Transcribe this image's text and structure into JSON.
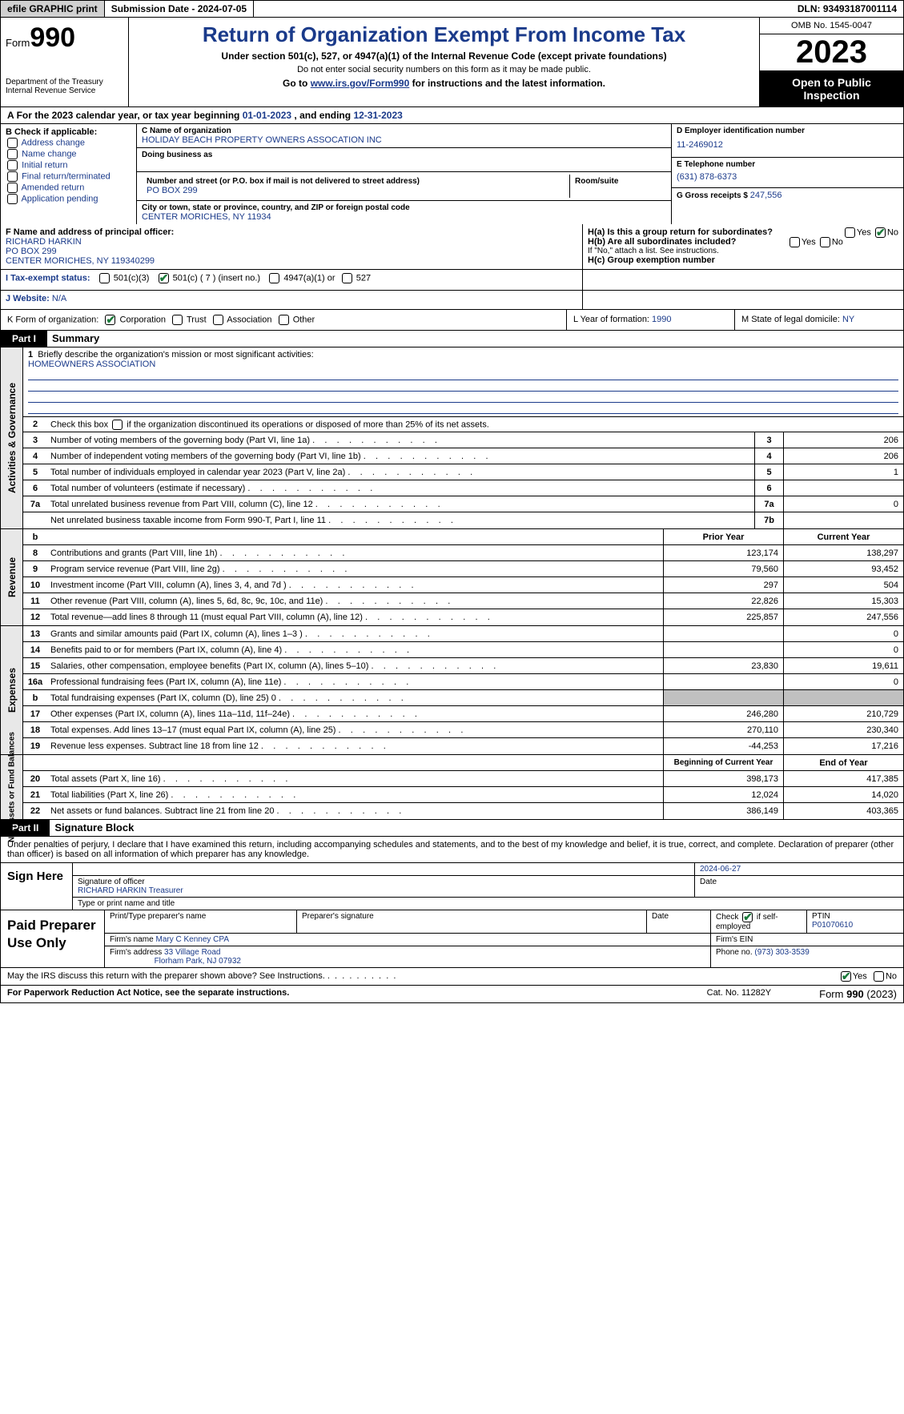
{
  "topbar": {
    "efile": "efile GRAPHIC print",
    "submission": "Submission Date - 2024-07-05",
    "dln": "DLN: 93493187001114"
  },
  "header": {
    "form_prefix": "Form",
    "form_number": "990",
    "dept1": "Department of the Treasury",
    "dept2": "Internal Revenue Service",
    "title": "Return of Organization Exempt From Income Tax",
    "subtitle": "Under section 501(c), 527, or 4947(a)(1) of the Internal Revenue Code (except private foundations)",
    "note": "Do not enter social security numbers on this form as it may be made public.",
    "goto_pre": "Go to ",
    "goto_link": "www.irs.gov/Form990",
    "goto_post": " for instructions and the latest information.",
    "omb": "OMB No. 1545-0047",
    "year": "2023",
    "inspection": "Open to Public Inspection"
  },
  "row_a": {
    "label": "A",
    "text": "For the 2023 calendar year, or tax year beginning ",
    "begin": "01-01-2023",
    "mid": "   , and ending ",
    "end": "12-31-2023"
  },
  "section_b": {
    "label": "B Check if applicable:",
    "items": [
      "Address change",
      "Name change",
      "Initial return",
      "Final return/terminated",
      "Amended return",
      "Application pending"
    ]
  },
  "section_c": {
    "name_label": "C Name of organization",
    "name": "HOLIDAY BEACH PROPERTY OWNERS ASSOCATION INC",
    "dba_label": "Doing business as",
    "addr_label": "Number and street (or P.O. box if mail is not delivered to street address)",
    "addr": "PO BOX 299",
    "room_label": "Room/suite",
    "city_label": "City or town, state or province, country, and ZIP or foreign postal code",
    "city": "CENTER MORICHES, NY  11934"
  },
  "section_d": {
    "label": "D Employer identification number",
    "value": "11-2469012"
  },
  "section_e": {
    "label": "E Telephone number",
    "value": "(631) 878-6373"
  },
  "section_g": {
    "label": "G Gross receipts $ ",
    "value": "247,556"
  },
  "section_f": {
    "label": "F  Name and address of principal officer:",
    "name": "RICHARD HARKIN",
    "addr1": "PO BOX 299",
    "addr2": "CENTER MORICHES, NY  119340299"
  },
  "section_h": {
    "ha_label": "H(a)  Is this a group return for subordinates?",
    "hb_label": "H(b)  Are all subordinates included?",
    "hb_note": "If \"No,\" attach a list. See instructions.",
    "hc_label": "H(c)  Group exemption number ",
    "yes": "Yes",
    "no": "No"
  },
  "section_i": {
    "label": "I  Tax-exempt status:",
    "opt1": "501(c)(3)",
    "opt2": "501(c) ( 7 ) (insert no.)",
    "opt3": "4947(a)(1) or",
    "opt4": "527"
  },
  "section_j": {
    "label": "J  Website: ",
    "value": "   N/A"
  },
  "section_k": {
    "label": "K Form of organization:",
    "opts": [
      "Corporation",
      "Trust",
      "Association",
      "Other"
    ]
  },
  "section_l": {
    "label": "L Year of formation: ",
    "value": "1990"
  },
  "section_m": {
    "label": "M State of legal domicile: ",
    "value": "NY"
  },
  "part1": {
    "num": "Part I",
    "title": "Summary"
  },
  "summary": {
    "gov": {
      "sidebar": "Activities & Governance",
      "line1_num": "1",
      "line1": "Briefly describe the organization's mission or most significant activities:",
      "mission": "HOMEOWNERS ASSOCIATION",
      "line2_num": "2",
      "line2": "Check this box ",
      "line2_post": " if the organization discontinued its operations or disposed of more than 25% of its net assets.",
      "rows": [
        {
          "n": "3",
          "d": "Number of voting members of the governing body (Part VI, line 1a)",
          "b": "3",
          "v": "206"
        },
        {
          "n": "4",
          "d": "Number of independent voting members of the governing body (Part VI, line 1b)",
          "b": "4",
          "v": "206"
        },
        {
          "n": "5",
          "d": "Total number of individuals employed in calendar year 2023 (Part V, line 2a)",
          "b": "5",
          "v": "1"
        },
        {
          "n": "6",
          "d": "Total number of volunteers (estimate if necessary)",
          "b": "6",
          "v": ""
        },
        {
          "n": "7a",
          "d": "Total unrelated business revenue from Part VIII, column (C), line 12",
          "b": "7a",
          "v": "0"
        },
        {
          "n": "",
          "d": "Net unrelated business taxable income from Form 990-T, Part I, line 11",
          "b": "7b",
          "v": ""
        }
      ]
    },
    "rev": {
      "sidebar": "Revenue",
      "hdr_b": "b",
      "hdr_prior": "Prior Year",
      "hdr_current": "Current Year",
      "rows": [
        {
          "n": "8",
          "d": "Contributions and grants (Part VIII, line 1h)",
          "p": "123,174",
          "c": "138,297"
        },
        {
          "n": "9",
          "d": "Program service revenue (Part VIII, line 2g)",
          "p": "79,560",
          "c": "93,452"
        },
        {
          "n": "10",
          "d": "Investment income (Part VIII, column (A), lines 3, 4, and 7d )",
          "p": "297",
          "c": "504"
        },
        {
          "n": "11",
          "d": "Other revenue (Part VIII, column (A), lines 5, 6d, 8c, 9c, 10c, and 11e)",
          "p": "22,826",
          "c": "15,303"
        },
        {
          "n": "12",
          "d": "Total revenue—add lines 8 through 11 (must equal Part VIII, column (A), line 12)",
          "p": "225,857",
          "c": "247,556"
        }
      ]
    },
    "exp": {
      "sidebar": "Expenses",
      "rows": [
        {
          "n": "13",
          "d": "Grants and similar amounts paid (Part IX, column (A), lines 1–3 )",
          "p": "",
          "c": "0"
        },
        {
          "n": "14",
          "d": "Benefits paid to or for members (Part IX, column (A), line 4)",
          "p": "",
          "c": "0"
        },
        {
          "n": "15",
          "d": "Salaries, other compensation, employee benefits (Part IX, column (A), lines 5–10)",
          "p": "23,830",
          "c": "19,611"
        },
        {
          "n": "16a",
          "d": "Professional fundraising fees (Part IX, column (A), line 11e)",
          "p": "",
          "c": "0"
        },
        {
          "n": "b",
          "d": "Total fundraising expenses (Part IX, column (D), line 25) 0",
          "p": "GREY",
          "c": "GREY"
        },
        {
          "n": "17",
          "d": "Other expenses (Part IX, column (A), lines 11a–11d, 11f–24e)",
          "p": "246,280",
          "c": "210,729"
        },
        {
          "n": "18",
          "d": "Total expenses. Add lines 13–17 (must equal Part IX, column (A), line 25)",
          "p": "270,110",
          "c": "230,340"
        },
        {
          "n": "19",
          "d": "Revenue less expenses. Subtract line 18 from line 12",
          "p": "-44,253",
          "c": "17,216"
        }
      ]
    },
    "net": {
      "sidebar": "Net Assets or Fund Balances",
      "hdr_begin": "Beginning of Current Year",
      "hdr_end": "End of Year",
      "rows": [
        {
          "n": "20",
          "d": "Total assets (Part X, line 16)",
          "p": "398,173",
          "c": "417,385"
        },
        {
          "n": "21",
          "d": "Total liabilities (Part X, line 26)",
          "p": "12,024",
          "c": "14,020"
        },
        {
          "n": "22",
          "d": "Net assets or fund balances. Subtract line 21 from line 20",
          "p": "386,149",
          "c": "403,365"
        }
      ]
    }
  },
  "part2": {
    "num": "Part II",
    "title": "Signature Block"
  },
  "sig": {
    "decl": "Under penalties of perjury, I declare that I have examined this return, including accompanying schedules and statements, and to the best of my knowledge and belief, it is true, correct, and complete. Declaration of preparer (other than officer) is based on all information of which preparer has any knowledge.",
    "sign_here": "Sign Here",
    "sig_officer": "Signature of officer",
    "sig_date": "Date",
    "sig_date_val": "2024-06-27",
    "officer": "RICHARD HARKIN  Treasurer",
    "type_name": "Type or print name and title",
    "paid": "Paid Preparer Use Only",
    "prep_name_lbl": "Print/Type preparer's name",
    "prep_sig_lbl": "Preparer's signature",
    "date_lbl": "Date",
    "check_lbl": "Check",
    "self_emp": "if self-employed",
    "ptin_lbl": "PTIN",
    "ptin": "P01070610",
    "firm_name_lbl": "Firm's name   ",
    "firm_name": "Mary C Kenney CPA",
    "firm_ein_lbl": "Firm's EIN ",
    "firm_addr_lbl": "Firm's address ",
    "firm_addr1": "33 Village Road",
    "firm_addr2": "Florham Park, NJ  07932",
    "phone_lbl": "Phone no. ",
    "phone": "(973) 303-3539",
    "discuss": "May the IRS discuss this return with the preparer shown above? See Instructions.",
    "yes": "Yes",
    "no": "No"
  },
  "footer": {
    "left": "For Paperwork Reduction Act Notice, see the separate instructions.",
    "mid": "Cat. No. 11282Y",
    "right_pre": "Form ",
    "right_form": "990",
    "right_post": " (2023)"
  }
}
